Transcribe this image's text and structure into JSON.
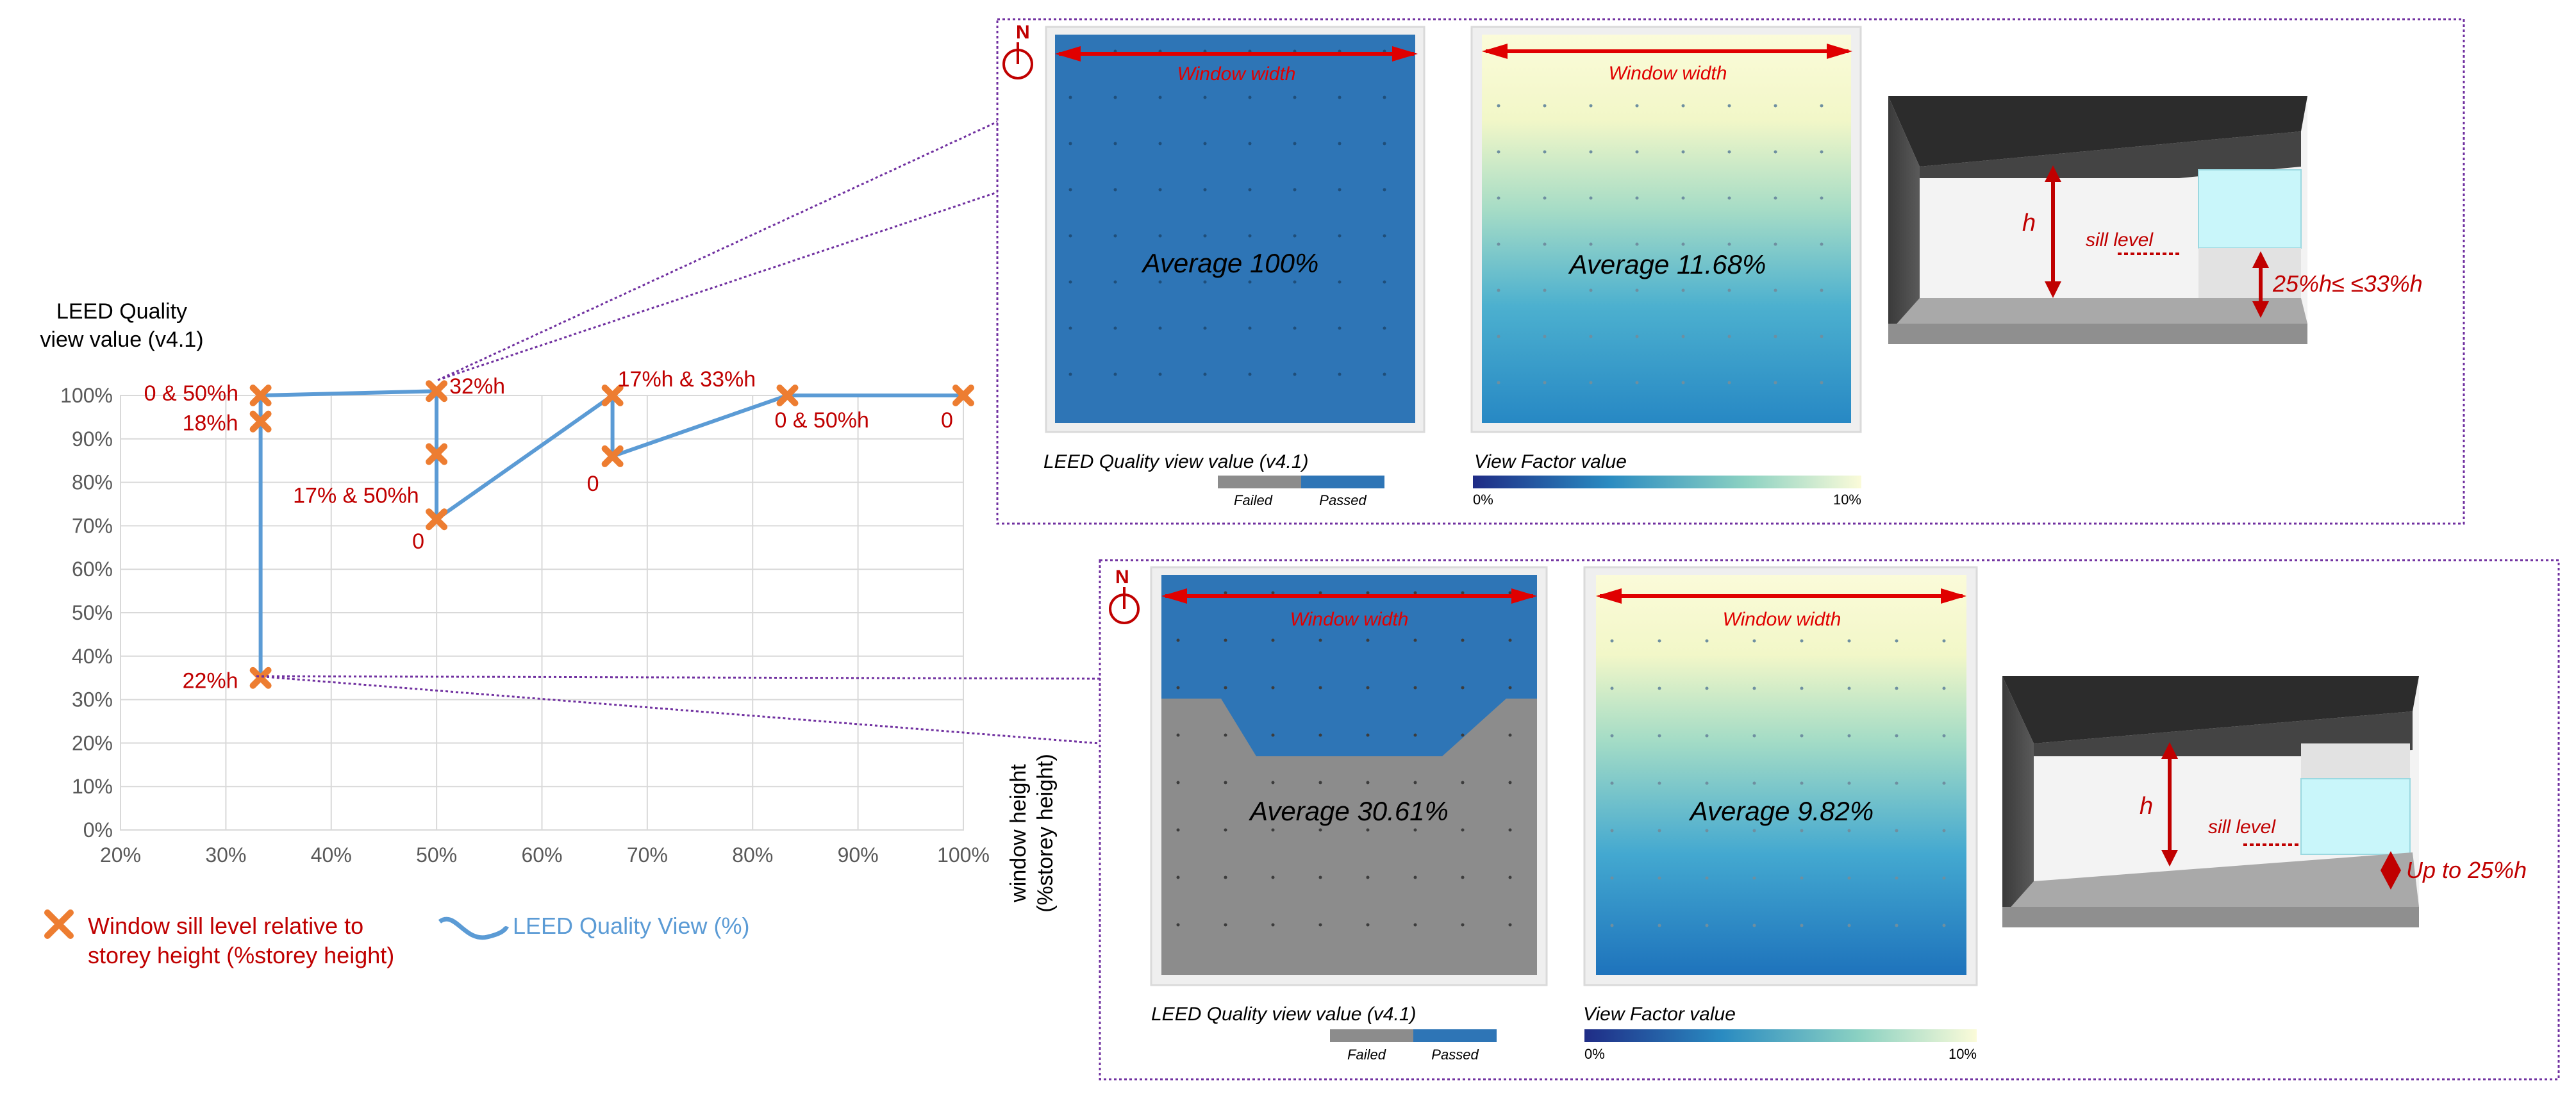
{
  "colors": {
    "marker": "#ED7D31",
    "series": "#5B9BD5",
    "point_label": "#C00000",
    "arrow": "#E00000",
    "zone_border": "#7030A0",
    "leed_passed": "#2E75B6",
    "leed_failed": "#8C8C8C",
    "grid": "#D9D9D9",
    "axis_text": "#595959"
  },
  "chart_data": {
    "type": "scatter",
    "title": "LEED Quality\nview value (v4.1)",
    "xlabel": "window height\n(%storey height)",
    "ylabel": "",
    "xlim": [
      20,
      100
    ],
    "ylim": [
      0,
      100
    ],
    "x_ticks": [
      "20%",
      "30%",
      "40%",
      "50%",
      "60%",
      "70%",
      "80%",
      "90%",
      "100%"
    ],
    "y_ticks": [
      "0%",
      "10%",
      "20%",
      "30%",
      "40%",
      "50%",
      "60%",
      "70%",
      "80%",
      "90%",
      "100%"
    ],
    "grid": true,
    "series": [
      {
        "name": "LEED Quality View (%)",
        "points": [
          {
            "x": 33.3,
            "y": 100,
            "label": "0 & 50%h"
          },
          {
            "x": 33.3,
            "y": 94,
            "label": "18%h"
          },
          {
            "x": 33.3,
            "y": 35,
            "label": "22%h"
          },
          {
            "x": 50,
            "y": 101,
            "label": "32%h"
          },
          {
            "x": 50,
            "y": 86.5,
            "label": "17% & 50%h"
          },
          {
            "x": 50,
            "y": 71.5,
            "label": "0"
          },
          {
            "x": 66.7,
            "y": 100,
            "label": "17%h & 33%h"
          },
          {
            "x": 66.7,
            "y": 86,
            "label": "0"
          },
          {
            "x": 83.3,
            "y": 100,
            "label": "0 & 50%h"
          },
          {
            "x": 100,
            "y": 100,
            "label": "0"
          }
        ]
      }
    ],
    "legend": [
      {
        "label": "Window sill level relative to\nstorey height (%storey height)",
        "kind": "marker"
      },
      {
        "label": "LEED Quality View (%)",
        "kind": "line"
      }
    ],
    "legend_position": "bottom-left"
  },
  "panels": [
    {
      "north": "N",
      "leed_map": {
        "window_label": "Window width",
        "average": "Average 100%",
        "legend_title": "LEED Quality view value (v4.1)",
        "legend_failed": "Failed",
        "legend_passed": "Passed"
      },
      "vf_map": {
        "window_label": "Window width",
        "average": "Average 11.68%",
        "legend_title": "View Factor value",
        "legend_min": "0%",
        "legend_max": "10%"
      },
      "room": {
        "h_label": "h",
        "sill_label": "sill level",
        "range_label": "25%h≤  ≤33%h"
      }
    },
    {
      "north": "N",
      "leed_map": {
        "window_label": "Window width",
        "average": "Average 30.61%",
        "legend_title": "LEED Quality view value (v4.1)",
        "legend_failed": "Failed",
        "legend_passed": "Passed"
      },
      "vf_map": {
        "window_label": "Window width",
        "average": "Average 9.82%",
        "legend_title": "View Factor value",
        "legend_min": "0%",
        "legend_max": "10%"
      },
      "room": {
        "h_label": "h",
        "sill_label": "sill level",
        "range_label": "Up to 25%h"
      }
    }
  ]
}
